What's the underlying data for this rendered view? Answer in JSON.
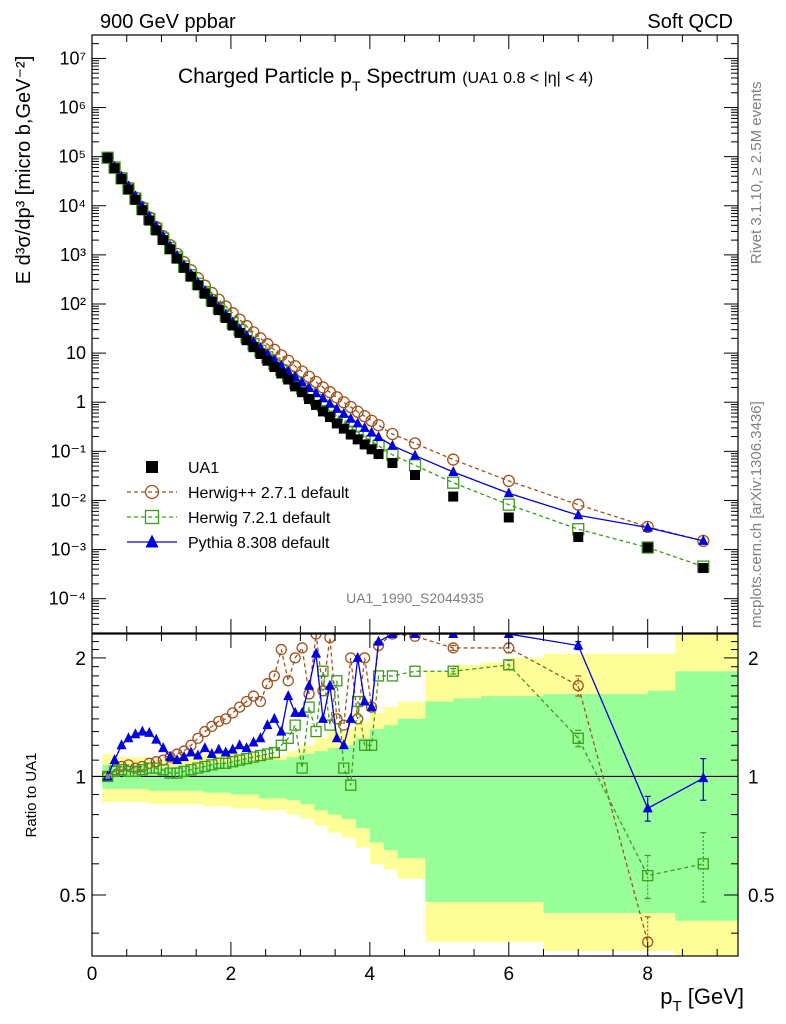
{
  "header": {
    "left": "900 GeV ppbar",
    "right": "Soft QCD"
  },
  "side_labels": {
    "rivet": "Rivet 3.1.10, ≥ 2.5M events",
    "mcplots": "mcplots.cern.ch [arXiv:1306.3436]"
  },
  "analysis_id": "UA1_1990_S2044935",
  "colors": {
    "data": "#000000",
    "herwigpp": "#a0521e",
    "herwig7": "#3c9c1c",
    "pythia": "#0000e0",
    "band_inner": "#99ff99",
    "band_outer": "#ffff99"
  },
  "chart_data": [
    {
      "type": "scatter",
      "title": "Charged Particle p_T Spectrum",
      "title_main": "Charged Particle p",
      "title_sub": "T",
      "title_main2": " Spectrum",
      "title_extra": "(UA1 0.8 < |η| < 4)",
      "ylabel": "E d³σ/dp³ [micro b,GeV⁻²]",
      "yscale": "log",
      "xlim": [
        0,
        9.3
      ],
      "ylim": [
        2e-05,
        30000000
      ],
      "ytick_labels": [
        "10⁻⁴",
        "10⁻³",
        "10⁻²",
        "10⁻¹",
        "1",
        "10",
        "10²",
        "10³",
        "10⁴",
        "10⁵",
        "10⁶",
        "10⁷"
      ],
      "ytick_values": [
        0.0001,
        0.001,
        0.01,
        0.1,
        1,
        10,
        100,
        1000,
        10000,
        100000,
        1000000,
        10000000
      ],
      "legend_position": "lower-left",
      "legend": [
        {
          "name": "UA1",
          "marker": "filled-square",
          "color_key": "data"
        },
        {
          "name": "Herwig++ 2.7.1 default",
          "marker": "open-circle",
          "color_key": "herwigpp"
        },
        {
          "name": "Herwig 7.2.1 default",
          "marker": "open-square",
          "color_key": "herwig7"
        },
        {
          "name": "Pythia 8.308 default",
          "marker": "filled-triangle",
          "color_key": "pythia"
        }
      ],
      "x": [
        0.225,
        0.325,
        0.425,
        0.525,
        0.625,
        0.725,
        0.825,
        0.925,
        1.025,
        1.125,
        1.225,
        1.325,
        1.425,
        1.525,
        1.625,
        1.725,
        1.825,
        1.925,
        2.025,
        2.125,
        2.225,
        2.325,
        2.425,
        2.525,
        2.625,
        2.725,
        2.825,
        2.925,
        3.025,
        3.125,
        3.225,
        3.325,
        3.425,
        3.525,
        3.625,
        3.725,
        3.825,
        3.925,
        4.025,
        4.125,
        4.325,
        4.65,
        5.2,
        6.0,
        7.0,
        8.0,
        8.8
      ],
      "data_values": [
        95000,
        58000,
        35000,
        21500,
        13200,
        8100,
        5000,
        3150,
        2000,
        1300,
        840,
        545,
        360,
        240,
        162,
        110,
        75,
        52,
        36.5,
        25.8,
        18.3,
        13.2,
        9.6,
        7.0,
        5.2,
        3.85,
        2.9,
        2.1,
        1.6,
        1.16,
        0.88,
        0.65,
        0.5,
        0.37,
        0.29,
        0.22,
        0.175,
        0.138,
        0.11,
        0.088,
        0.058,
        0.033,
        0.012,
        0.0045,
        0.0018,
        0.0011,
        0.00042
      ],
      "pythia_x": [
        0.225,
        0.325,
        0.425,
        0.525,
        0.625,
        0.725,
        0.825,
        0.925,
        1.025,
        1.125,
        1.225,
        1.325,
        1.425,
        1.525,
        1.625,
        1.725,
        1.825,
        1.925,
        2.025,
        2.125,
        2.225,
        2.325,
        2.425,
        2.525,
        2.625,
        2.725,
        2.825,
        2.925,
        3.025,
        3.125,
        3.225,
        3.325,
        3.425,
        3.525,
        3.625,
        3.725,
        3.825,
        3.925,
        4.025,
        4.125,
        4.325,
        4.65,
        5.2,
        6.0,
        7.0,
        8.0,
        8.8
      ],
      "pythia_values": [
        95000,
        62000,
        39500,
        25000,
        15600,
        9700,
        6000,
        3800,
        2400,
        1500,
        960,
        620,
        405,
        270,
        183,
        125,
        86,
        60,
        42,
        30.5,
        22.5,
        16.8,
        12.6,
        9.5,
        7.2,
        5.5,
        4.2,
        3.25,
        2.5,
        1.95,
        1.52,
        1.2,
        0.93,
        0.73,
        0.58,
        0.46,
        0.37,
        0.3,
        0.24,
        0.195,
        0.13,
        0.082,
        0.038,
        0.014,
        0.005,
        0.0028,
        0.0015
      ],
      "herwigpp_values": [
        95000,
        60500,
        37000,
        23500,
        14700,
        9300,
        5800,
        3700,
        2400,
        1580,
        1050,
        710,
        485,
        335,
        236,
        168,
        122,
        89,
        65,
        48,
        35.5,
        26.5,
        20,
        15.2,
        11.7,
        9.0,
        7.0,
        5.4,
        4.2,
        3.3,
        2.6,
        2.0,
        1.6,
        1.26,
        1.0,
        0.8,
        0.64,
        0.52,
        0.42,
        0.34,
        0.225,
        0.145,
        0.068,
        0.025,
        0.0082,
        0.0029,
        0.0015
      ],
      "herwig7_values": [
        95000,
        60000,
        36200,
        22400,
        14000,
        8700,
        5400,
        3400,
        2150,
        1380,
        890,
        580,
        385,
        258,
        175,
        120,
        83,
        58,
        41,
        29.3,
        21,
        15.2,
        11.1,
        8.2,
        6.1,
        4.5,
        3.35,
        2.5,
        1.9,
        1.44,
        1.1,
        0.85,
        0.66,
        0.51,
        0.4,
        0.32,
        0.25,
        0.2,
        0.16,
        0.13,
        0.085,
        0.052,
        0.023,
        0.0082,
        0.0026,
        0.0011,
        0.00045
      ]
    },
    {
      "type": "line",
      "ylabel": "Ratio to UA1",
      "xlabel": "p_T [GeV]",
      "xlabel_main": "p",
      "xlabel_sub": "T",
      "xlabel_unit": " [GeV]",
      "xlim": [
        0,
        9.3
      ],
      "ylim": [
        0.35,
        2.3
      ],
      "xtick_values": [
        0,
        2,
        4,
        6,
        8
      ],
      "xtick_labels": [
        "0",
        "2",
        "4",
        "6",
        "8"
      ],
      "ytick_values": [
        0.5,
        1,
        2
      ],
      "ytick_labels": [
        "0.5",
        "1",
        "2"
      ],
      "band_edges": [
        0.15,
        0.4,
        0.8,
        1.2,
        1.6,
        2.0,
        2.4,
        2.8,
        3.0,
        3.2,
        3.4,
        3.6,
        3.8,
        4.0,
        4.2,
        4.4,
        4.8,
        5.2,
        5.6,
        6.0,
        6.5,
        7.0,
        7.5,
        8.0,
        8.4,
        9.3
      ],
      "band_outer_lo": [
        0.86,
        0.86,
        0.85,
        0.85,
        0.84,
        0.83,
        0.82,
        0.8,
        0.78,
        0.75,
        0.72,
        0.7,
        0.66,
        0.6,
        0.58,
        0.55,
        0.38,
        0.38,
        0.38,
        0.38,
        0.36,
        0.36,
        0.36,
        0.36,
        0.34
      ],
      "band_outer_hi": [
        1.14,
        1.12,
        1.1,
        1.12,
        1.14,
        1.14,
        1.13,
        1.16,
        1.2,
        1.25,
        1.3,
        1.32,
        1.38,
        1.45,
        1.5,
        1.55,
        1.85,
        1.92,
        1.95,
        2.0,
        2.05,
        2.05,
        2.05,
        2.05,
        2.3
      ],
      "band_inner_lo": [
        0.93,
        0.93,
        0.92,
        0.92,
        0.91,
        0.9,
        0.88,
        0.87,
        0.85,
        0.82,
        0.8,
        0.78,
        0.74,
        0.68,
        0.65,
        0.62,
        0.48,
        0.48,
        0.48,
        0.48,
        0.45,
        0.45,
        0.45,
        0.45,
        0.43
      ],
      "band_inner_hi": [
        1.07,
        1.06,
        1.05,
        1.06,
        1.08,
        1.1,
        1.1,
        1.12,
        1.14,
        1.16,
        1.18,
        1.2,
        1.25,
        1.32,
        1.35,
        1.4,
        1.55,
        1.58,
        1.6,
        1.6,
        1.62,
        1.62,
        1.62,
        1.65,
        1.85
      ],
      "series": [
        {
          "name": "Herwig++ 2.7.1 default",
          "color_key": "herwigpp",
          "marker": "open-circle",
          "x": [
            0.225,
            0.325,
            0.425,
            0.525,
            0.625,
            0.725,
            0.825,
            0.925,
            1.025,
            1.125,
            1.225,
            1.325,
            1.425,
            1.525,
            1.625,
            1.725,
            1.825,
            1.925,
            2.025,
            2.125,
            2.225,
            2.325,
            2.425,
            2.525,
            2.625,
            2.725,
            2.825,
            2.925,
            3.025,
            3.125,
            3.225,
            3.325,
            3.425,
            3.525,
            3.625,
            3.725,
            3.825,
            3.925,
            4.025,
            4.125,
            4.325,
            4.65,
            5.2,
            6.0,
            7.0,
            8.0
          ],
          "y": [
            1.0,
            1.04,
            1.06,
            1.07,
            1.05,
            1.06,
            1.08,
            1.09,
            1.1,
            1.12,
            1.14,
            1.16,
            1.2,
            1.25,
            1.3,
            1.34,
            1.38,
            1.4,
            1.45,
            1.5,
            1.55,
            1.6,
            1.55,
            1.72,
            1.8,
            2.1,
            1.75,
            2.0,
            2.12,
            1.62,
            2.3,
            1.65,
            2.25,
            1.4,
            1.35,
            2.0,
            1.4,
            2.0,
            1.5,
            2.15,
            2.3,
            2.27,
            2.12,
            2.12,
            1.7,
            0.38
          ],
          "yerr": [
            0,
            0,
            0,
            0,
            0,
            0,
            0,
            0,
            0,
            0,
            0,
            0,
            0,
            0,
            0,
            0,
            0,
            0,
            0,
            0,
            0,
            0,
            0,
            0,
            0,
            0,
            0,
            0,
            0,
            0,
            0,
            0,
            0,
            0,
            0,
            0,
            0,
            0,
            0,
            0,
            0,
            0,
            0.03,
            0.06,
            0.1,
            0.06
          ]
        },
        {
          "name": "Herwig 7.2.1 default",
          "color_key": "herwig7",
          "marker": "open-square",
          "x": [
            0.225,
            0.325,
            0.425,
            0.525,
            0.625,
            0.725,
            0.825,
            0.925,
            1.025,
            1.125,
            1.225,
            1.325,
            1.425,
            1.525,
            1.625,
            1.725,
            1.825,
            1.925,
            2.025,
            2.125,
            2.225,
            2.325,
            2.425,
            2.525,
            2.625,
            2.725,
            2.825,
            2.925,
            3.025,
            3.125,
            3.225,
            3.325,
            3.425,
            3.525,
            3.625,
            3.725,
            3.825,
            3.925,
            4.025,
            4.125,
            4.325,
            4.65,
            5.2,
            6.0,
            7.0,
            8.0,
            8.8
          ],
          "y": [
            1.0,
            1.03,
            1.04,
            1.03,
            1.03,
            1.04,
            1.05,
            1.05,
            1.04,
            1.02,
            1.02,
            1.03,
            1.04,
            1.05,
            1.06,
            1.07,
            1.08,
            1.08,
            1.09,
            1.1,
            1.11,
            1.12,
            1.13,
            1.14,
            1.15,
            1.2,
            1.25,
            1.35,
            1.05,
            1.5,
            1.3,
            1.85,
            1.35,
            1.75,
            1.05,
            0.95,
            1.55,
            1.2,
            1.2,
            1.8,
            1.8,
            1.85,
            1.85,
            1.92,
            1.25,
            0.56,
            0.6
          ],
          "yerr": [
            0,
            0,
            0,
            0,
            0,
            0,
            0,
            0,
            0,
            0,
            0,
            0,
            0,
            0,
            0,
            0,
            0,
            0,
            0,
            0,
            0,
            0,
            0,
            0,
            0,
            0,
            0,
            0,
            0,
            0,
            0,
            0,
            0,
            0,
            0,
            0,
            0,
            0,
            0,
            0,
            0,
            0,
            0.03,
            0.05,
            0.06,
            0.07,
            0.12
          ]
        },
        {
          "name": "Pythia 8.308 default",
          "color_key": "pythia",
          "marker": "filled-triangle",
          "x": [
            0.225,
            0.325,
            0.425,
            0.525,
            0.625,
            0.725,
            0.825,
            0.925,
            1.025,
            1.125,
            1.225,
            1.325,
            1.425,
            1.525,
            1.625,
            1.725,
            1.825,
            1.925,
            2.025,
            2.125,
            2.225,
            2.325,
            2.425,
            2.525,
            2.625,
            2.725,
            2.825,
            2.925,
            3.025,
            3.125,
            3.225,
            3.325,
            3.425,
            3.525,
            3.625,
            3.725,
            3.825,
            3.925,
            4.025,
            4.125,
            4.325,
            4.65,
            5.2,
            6.0,
            7.0,
            8.0,
            8.8
          ],
          "y": [
            1.0,
            1.1,
            1.2,
            1.25,
            1.28,
            1.3,
            1.29,
            1.24,
            1.18,
            1.12,
            1.1,
            1.12,
            1.15,
            1.13,
            1.18,
            1.14,
            1.17,
            1.15,
            1.17,
            1.2,
            1.18,
            1.22,
            1.25,
            1.35,
            1.4,
            1.3,
            1.6,
            1.45,
            1.45,
            1.7,
            2.05,
            1.4,
            1.7,
            1.25,
            1.2,
            1.4,
            2.0,
            1.55,
            1.5,
            2.2,
            2.3,
            2.3,
            2.3,
            2.3,
            2.15,
            0.83,
            0.99
          ],
          "yerr": [
            0,
            0,
            0,
            0,
            0,
            0,
            0,
            0,
            0,
            0,
            0,
            0,
            0,
            0,
            0,
            0,
            0,
            0,
            0,
            0,
            0,
            0,
            0,
            0,
            0,
            0,
            0,
            0,
            0,
            0,
            0,
            0,
            0,
            0,
            0,
            0,
            0,
            0,
            0,
            0,
            0,
            0,
            0,
            0,
            0.05,
            0.06,
            0.12
          ]
        }
      ]
    }
  ]
}
